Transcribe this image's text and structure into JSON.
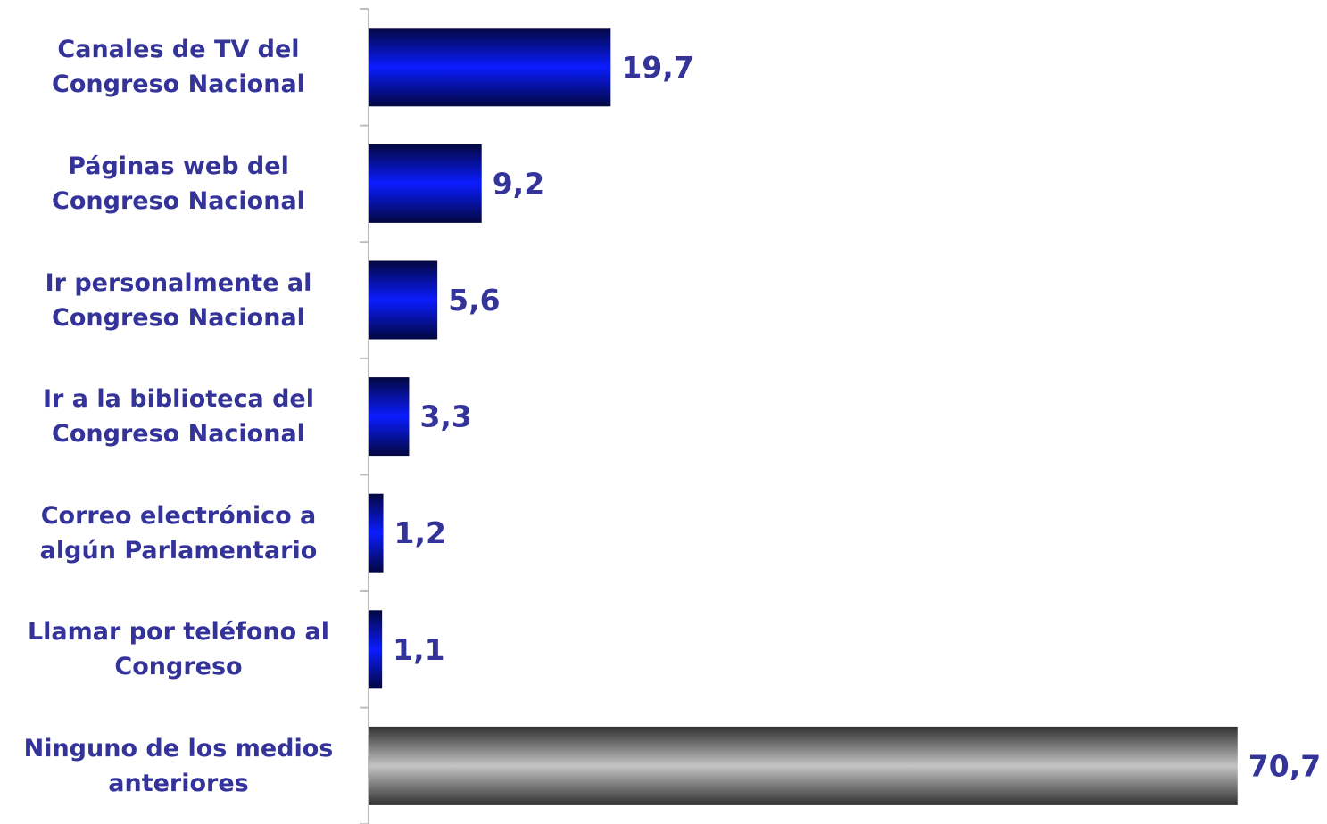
{
  "chart_data": {
    "type": "bar",
    "orientation": "horizontal",
    "categories": [
      "Canales de TV del Congreso Nacional",
      "Páginas web del Congreso Nacional",
      "Ir personalmente al Congreso Nacional",
      "Ir a la biblioteca del Congreso Nacional",
      "Correo electrónico a algún Parlamentario",
      "Llamar por teléfono al Congreso",
      "Ninguno de los medios anteriores"
    ],
    "values": [
      19.7,
      9.2,
      5.6,
      3.3,
      1.2,
      1.1,
      70.7
    ],
    "value_labels": [
      "19,7",
      "9,2",
      "5,6",
      "3,3",
      "1,2",
      "1,1",
      "70,7"
    ],
    "colors": [
      "#0a1cff",
      "#0a1cff",
      "#0a1cff",
      "#0a1cff",
      "#0a1cff",
      "#0a1cff",
      "#c4c4c4"
    ],
    "xlim": [
      0,
      75
    ]
  }
}
